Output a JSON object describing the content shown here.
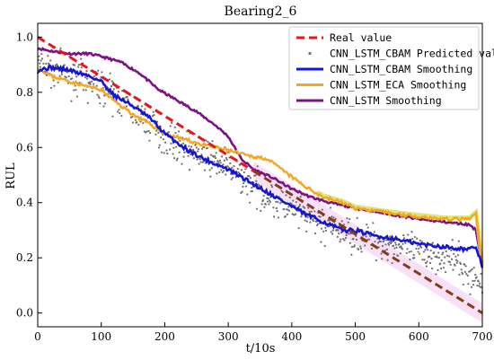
{
  "chart_data": {
    "type": "line",
    "title": "Bearing2_6",
    "xlabel": "t/10s",
    "ylabel": "RUL",
    "xlim": [
      0,
      700
    ],
    "ylim": [
      -0.05,
      1.05
    ],
    "xticks": [
      0,
      100,
      200,
      300,
      400,
      500,
      600,
      700
    ],
    "yticks": [
      0.0,
      0.2,
      0.4,
      0.6,
      0.8,
      1.0
    ],
    "legend_position": "top-right",
    "grid": false,
    "series": [
      {
        "name": "Real value",
        "style": "dashed",
        "color": "#e8141b",
        "x": [
          0,
          700
        ],
        "y": [
          1.0,
          0.0
        ]
      },
      {
        "name": "CNN_LSTM_CBAM Predicted value",
        "style": "scatter",
        "color": "#6e6e6e",
        "noise": 0.06,
        "x": [
          0,
          50,
          100,
          150,
          200,
          250,
          300,
          350,
          400,
          450,
          500,
          550,
          600,
          650,
          700
        ],
        "y": [
          0.9,
          0.86,
          0.82,
          0.74,
          0.64,
          0.58,
          0.53,
          0.44,
          0.37,
          0.32,
          0.28,
          0.25,
          0.22,
          0.2,
          0.1
        ]
      },
      {
        "name": "CNN_LSTM_CBAM Smoothing",
        "style": "solid",
        "color": "#1515d6",
        "x": [
          0,
          20,
          50,
          80,
          100,
          120,
          150,
          180,
          200,
          230,
          260,
          300,
          330,
          360,
          390,
          420,
          450,
          480,
          500,
          530,
          560,
          600,
          640,
          680,
          690,
          700
        ],
        "y": [
          0.88,
          0.89,
          0.88,
          0.86,
          0.84,
          0.79,
          0.75,
          0.7,
          0.65,
          0.6,
          0.56,
          0.52,
          0.48,
          0.44,
          0.4,
          0.36,
          0.33,
          0.3,
          0.3,
          0.28,
          0.27,
          0.25,
          0.24,
          0.23,
          0.24,
          0.17
        ]
      },
      {
        "name": "CNN_LSTM_ECA Smoothing",
        "style": "solid",
        "color": "#f5a623",
        "x": [
          0,
          20,
          50,
          80,
          100,
          120,
          150,
          180,
          200,
          230,
          260,
          300,
          330,
          360,
          390,
          420,
          450,
          480,
          500,
          530,
          560,
          600,
          640,
          680,
          690,
          700
        ],
        "y": [
          0.89,
          0.86,
          0.84,
          0.82,
          0.81,
          0.77,
          0.72,
          0.68,
          0.65,
          0.63,
          0.61,
          0.59,
          0.57,
          0.56,
          0.51,
          0.46,
          0.42,
          0.4,
          0.38,
          0.37,
          0.36,
          0.35,
          0.34,
          0.34,
          0.36,
          0.17
        ]
      },
      {
        "name": "CNN_LSTM Smoothing",
        "style": "solid",
        "color": "#7b1286",
        "x": [
          0,
          20,
          50,
          80,
          100,
          130,
          160,
          190,
          220,
          250,
          280,
          300,
          320,
          340,
          370,
          400,
          430,
          460,
          500,
          550,
          600,
          640,
          680,
          690,
          700
        ],
        "y": [
          0.96,
          0.95,
          0.94,
          0.94,
          0.93,
          0.91,
          0.87,
          0.81,
          0.77,
          0.73,
          0.68,
          0.64,
          0.56,
          0.52,
          0.49,
          0.45,
          0.42,
          0.4,
          0.38,
          0.36,
          0.34,
          0.33,
          0.32,
          0.3,
          0.17
        ]
      }
    ]
  },
  "colors": {
    "overlap_dash": "#8a3a10",
    "ribbon": "#d8e04a",
    "pink_band": "#f3c6ee"
  }
}
